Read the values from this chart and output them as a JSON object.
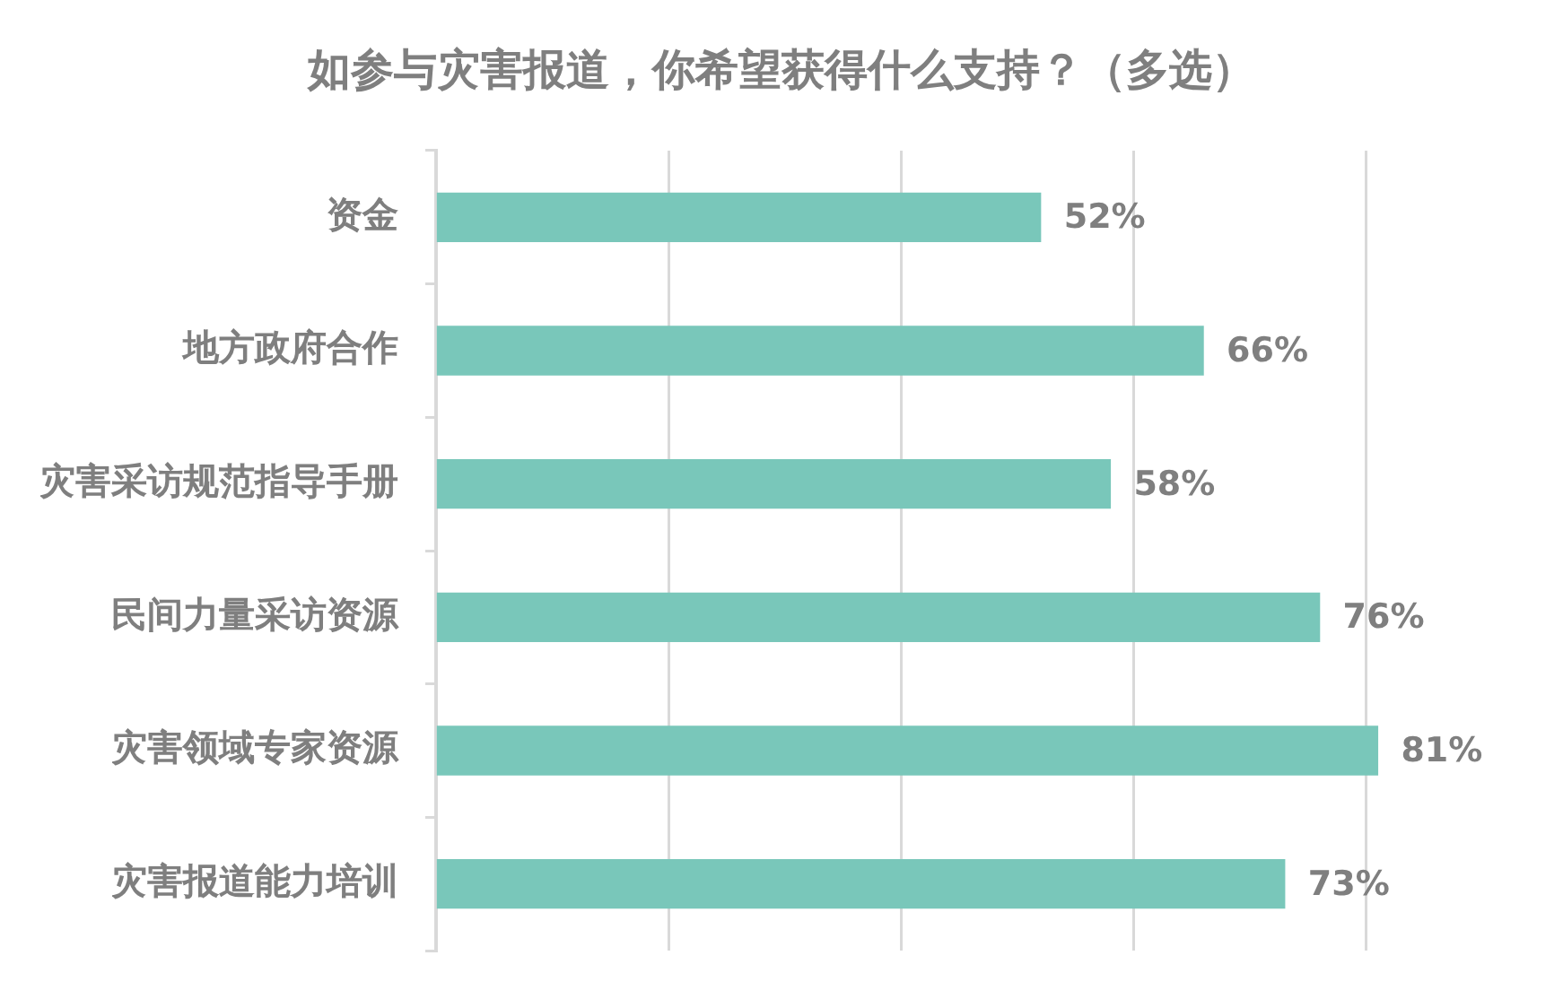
{
  "chart_data": {
    "type": "bar",
    "orientation": "horizontal",
    "title": "如参与灾害报道，你希望获得什么支持？（多选）",
    "categories": [
      "资金",
      "地方政府合作",
      "灾害采访规范指导手册",
      "民间力量采访资源",
      "灾害领域专家资源",
      "灾害报道能力培训"
    ],
    "values": [
      52,
      66,
      58,
      76,
      81,
      73
    ],
    "value_labels": [
      "52%",
      "66%",
      "58%",
      "76%",
      "81%",
      "73%"
    ],
    "color": "#79c7ba",
    "xticks": [
      {
        "value": 0,
        "label": null
      },
      {
        "value": 20,
        "label": null
      },
      {
        "value": 40,
        "label": null
      },
      {
        "value": 60,
        "label": null
      },
      {
        "value": 80,
        "label": null
      }
    ],
    "grid": "x",
    "tick_labels": "y"
  }
}
